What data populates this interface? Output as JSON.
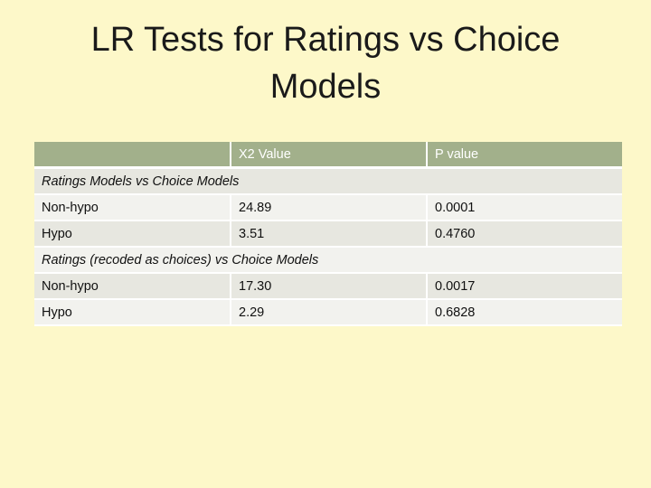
{
  "slide": {
    "title_line1": "LR Tests for Ratings vs Choice",
    "title_line2": "Models"
  },
  "table": {
    "headers": [
      "",
      "X2 Value",
      "P value"
    ],
    "sections": [
      {
        "label": "Ratings Models vs Choice Models",
        "rows": [
          {
            "label": "Non-hypo",
            "x2": "24.89",
            "p": "0.0001"
          },
          {
            "label": "Hypo",
            "x2": "3.51",
            "p": "0.4760"
          }
        ]
      },
      {
        "label": "Ratings (recoded as choices) vs Choice Models",
        "rows": [
          {
            "label": "Non-hypo",
            "x2": "17.30",
            "p": "0.0017"
          },
          {
            "label": "Hypo",
            "x2": "2.29",
            "p": "0.6828"
          }
        ]
      }
    ]
  },
  "colors": {
    "background": "#fdf8c9",
    "header": "#a2b08b",
    "band_dark": "#e7e7e0",
    "band_light": "#f2f2ee"
  }
}
